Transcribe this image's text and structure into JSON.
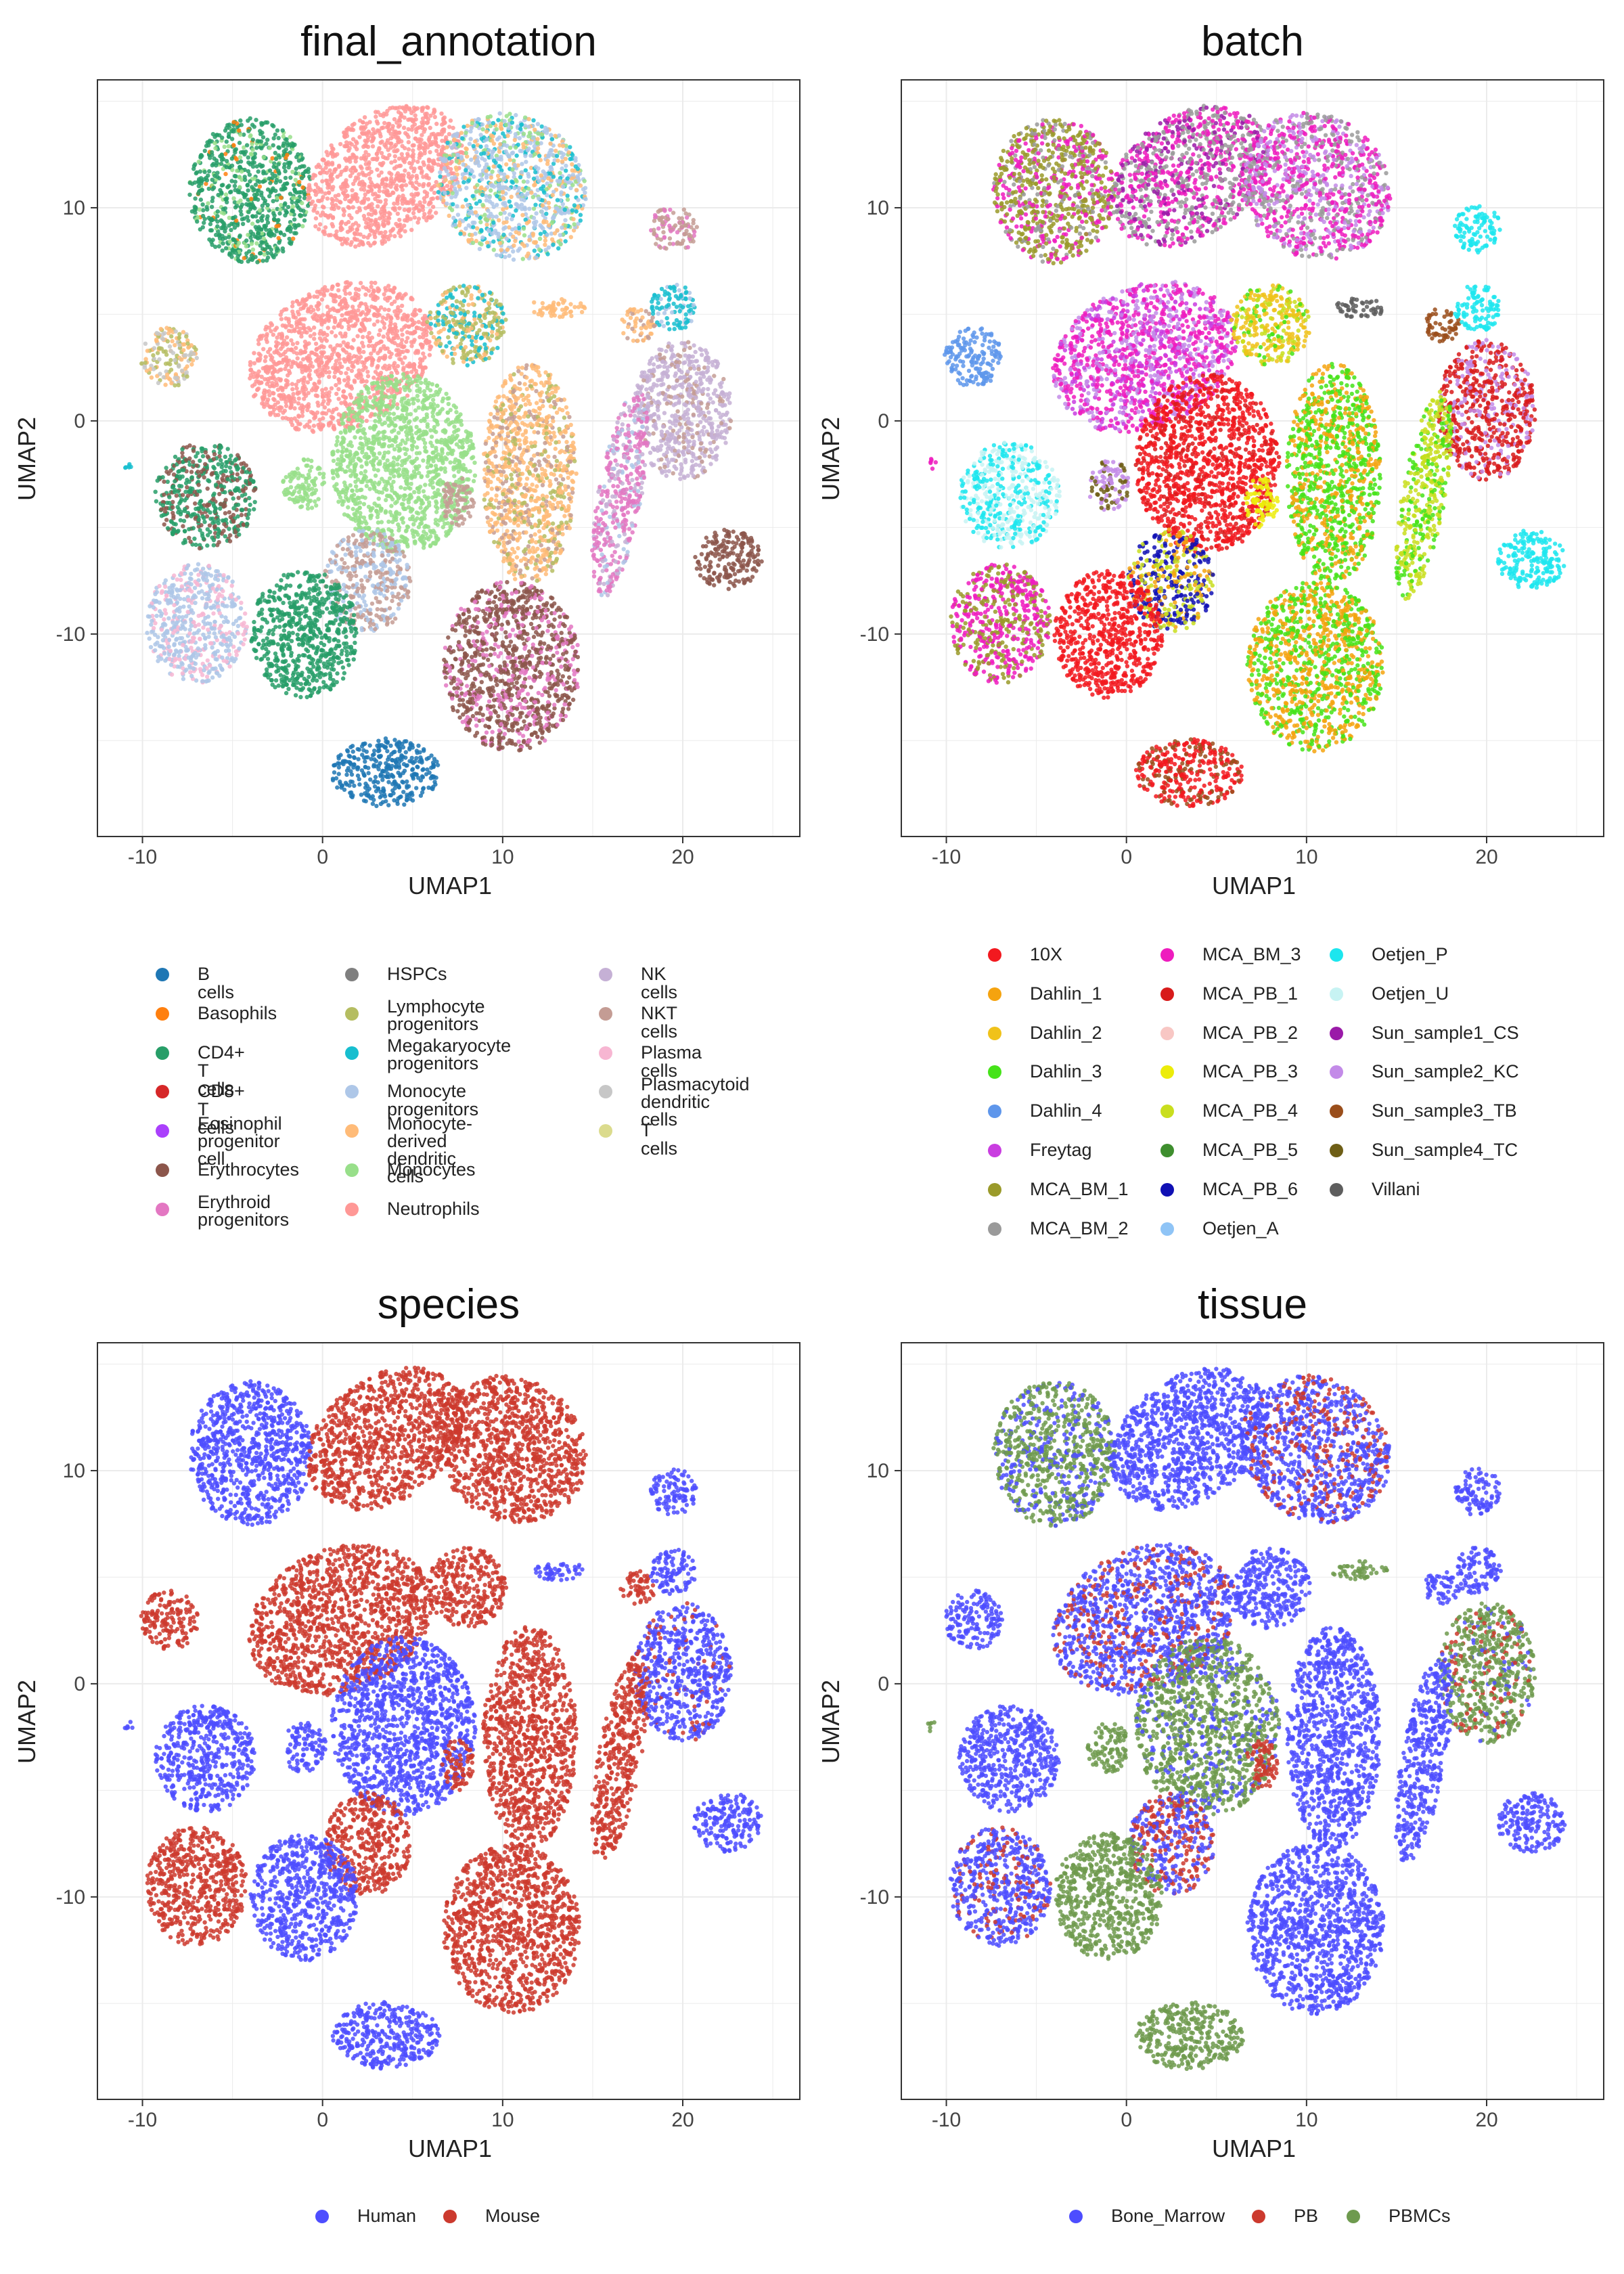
{
  "panels": [
    {
      "title": "final_annotation",
      "xlabel": "UMAP1",
      "ylabel": "UMAP2",
      "legend": [
        {
          "label": "B cells",
          "color": "#1f77b4"
        },
        {
          "label": "Basophils",
          "color": "#ff7f0e"
        },
        {
          "label": "CD4+ T cells",
          "color": "#279e68"
        },
        {
          "label": "CD8+ T cells",
          "color": "#d62728"
        },
        {
          "label": "Eosinophil\nprogenitor cell",
          "color": "#aa40fc"
        },
        {
          "label": "Erythrocytes",
          "color": "#8c564b"
        },
        {
          "label": "Erythroid\nprogenitors",
          "color": "#e377c2"
        },
        {
          "label": "HSPCs",
          "color": "#7f7f7f"
        },
        {
          "label": "Lymphocyte\nprogenitors",
          "color": "#b5bd61"
        },
        {
          "label": "Megakaryocyte\nprogenitors",
          "color": "#17becf"
        },
        {
          "label": "Monocyte progenitors",
          "color": "#aec7e8"
        },
        {
          "label": "Monocyte-derived\ndendritic cells",
          "color": "#ffbb78"
        },
        {
          "label": "Monocytes",
          "color": "#98df8a"
        },
        {
          "label": "Neutrophils",
          "color": "#ff9896"
        },
        {
          "label": "NK cells",
          "color": "#c5b0d5"
        },
        {
          "label": "NKT cells",
          "color": "#c49c94"
        },
        {
          "label": "Plasma cells",
          "color": "#f7b6d2"
        },
        {
          "label": "Plasmacytoid\ndendritic cells",
          "color": "#c7c7c7"
        },
        {
          "label": "T cells",
          "color": "#dbdb8d"
        }
      ]
    },
    {
      "title": "batch",
      "xlabel": "UMAP1",
      "ylabel": "UMAP2",
      "legend": [
        {
          "label": "10X",
          "color": "#f2191f"
        },
        {
          "label": "Dahlin_1",
          "color": "#f5a30f"
        },
        {
          "label": "Dahlin_2",
          "color": "#f0c21a"
        },
        {
          "label": "Dahlin_3",
          "color": "#45e319"
        },
        {
          "label": "Dahlin_4",
          "color": "#5e96eb"
        },
        {
          "label": "Freytag",
          "color": "#c93de0"
        },
        {
          "label": "MCA_BM_1",
          "color": "#9a9a2a"
        },
        {
          "label": "MCA_BM_2",
          "color": "#9a9a9a"
        },
        {
          "label": "MCA_BM_3",
          "color": "#ee1cbe"
        },
        {
          "label": "MCA_PB_1",
          "color": "#d81b1b"
        },
        {
          "label": "MCA_PB_2",
          "color": "#f8c7c4"
        },
        {
          "label": "MCA_PB_3",
          "color": "#ecec0a"
        },
        {
          "label": "MCA_PB_4",
          "color": "#c9de1e"
        },
        {
          "label": "MCA_PB_5",
          "color": "#3e8e2e"
        },
        {
          "label": "MCA_PB_6",
          "color": "#1010b4"
        },
        {
          "label": "Oetjen_A",
          "color": "#8fc4f6"
        },
        {
          "label": "Oetjen_P",
          "color": "#1de6ee"
        },
        {
          "label": "Oetjen_U",
          "color": "#c7f3f3"
        },
        {
          "label": "Sun_sample1_CS",
          "color": "#9a1aa8"
        },
        {
          "label": "Sun_sample2_KC",
          "color": "#c38be8"
        },
        {
          "label": "Sun_sample3_TB",
          "color": "#9a4e1b"
        },
        {
          "label": "Sun_sample4_TC",
          "color": "#6e5e16"
        },
        {
          "label": "Villani",
          "color": "#5e5e5e"
        }
      ]
    },
    {
      "title": "species",
      "xlabel": "UMAP1",
      "ylabel": "UMAP2",
      "legend": [
        {
          "label": "Human",
          "color": "#4d4dff"
        },
        {
          "label": "Mouse",
          "color": "#cc3a2e"
        }
      ]
    },
    {
      "title": "tissue",
      "xlabel": "UMAP1",
      "ylabel": "UMAP2",
      "legend": [
        {
          "label": "Bone_Marrow",
          "color": "#4d4dff"
        },
        {
          "label": "PB",
          "color": "#cc3a2e"
        },
        {
          "label": "PBMCs",
          "color": "#6e9a4e"
        }
      ]
    }
  ],
  "chart_data": [
    {
      "type": "scatter",
      "title": "final_annotation",
      "xlabel": "UMAP1",
      "ylabel": "UMAP2",
      "xlim": [
        -12.5,
        26.5
      ],
      "ylim": [
        -19.5,
        16
      ],
      "xticks": [
        -10,
        0,
        10,
        20
      ],
      "yticks": [
        -10,
        0,
        10
      ],
      "grid": true,
      "legend_position": "bottom",
      "clusters": [
        {
          "x": -4,
          "y": 10.8,
          "category": "CD4+ T cells"
        },
        {
          "x": 3.5,
          "y": 11.5,
          "category": "Neutrophils"
        },
        {
          "x": 10.5,
          "y": 11,
          "category": "Monocyte progenitors"
        },
        {
          "x": 19.5,
          "y": 9,
          "category": "NKT cells"
        },
        {
          "x": -8.5,
          "y": 3,
          "category": "Plasmacytoid dendritic cells"
        },
        {
          "x": 1,
          "y": 3,
          "category": "Neutrophils"
        },
        {
          "x": 8,
          "y": 4.5,
          "category": "Lymphocyte progenitors"
        },
        {
          "x": 12.5,
          "y": 4.8,
          "category": "Monocyte-derived dendritic cells"
        },
        {
          "x": 17.5,
          "y": 4.5,
          "category": "Monocyte-derived dendritic cells"
        },
        {
          "x": 19.5,
          "y": 5.3,
          "category": "Megakaryocyte progenitors"
        },
        {
          "x": 20,
          "y": 0.5,
          "category": "NK cells"
        },
        {
          "x": 4.5,
          "y": -2,
          "category": "Monocytes"
        },
        {
          "x": 11.5,
          "y": -2.5,
          "category": "Monocyte-derived dendritic cells"
        },
        {
          "x": 16.5,
          "y": -3.5,
          "category": "Erythroid progenitors"
        },
        {
          "x": -6.5,
          "y": -3.5,
          "category": "CD4+ T cells"
        },
        {
          "x": -1,
          "y": -3,
          "category": "Monocytes"
        },
        {
          "x": 2.5,
          "y": -7.5,
          "category": "NKT cells"
        },
        {
          "x": 22.5,
          "y": -6.5,
          "category": "Erythrocytes"
        },
        {
          "x": -7,
          "y": -9.5,
          "category": "Monocyte progenitors"
        },
        {
          "x": -1,
          "y": -10,
          "category": "CD4+ T cells"
        },
        {
          "x": 10.5,
          "y": -11.5,
          "category": "Erythrocytes"
        },
        {
          "x": 3.5,
          "y": -16.5,
          "category": "B cells"
        }
      ]
    },
    {
      "type": "scatter",
      "title": "batch",
      "xlabel": "UMAP1",
      "ylabel": "UMAP2",
      "xlim": [
        -12.5,
        26.5
      ],
      "ylim": [
        -19.5,
        16
      ],
      "xticks": [
        -10,
        0,
        10,
        20
      ],
      "yticks": [
        -10,
        0,
        10
      ],
      "grid": true,
      "legend_position": "bottom",
      "clusters": [
        {
          "x": -4,
          "y": 10.8,
          "category": "MCA_BM_1"
        },
        {
          "x": 3.5,
          "y": 11.5,
          "category": "MCA_BM_2"
        },
        {
          "x": 10.5,
          "y": 11,
          "category": "MCA_BM_3"
        },
        {
          "x": 19.5,
          "y": 9,
          "category": "Oetjen_P"
        },
        {
          "x": -8.5,
          "y": 3,
          "category": "Dahlin_4"
        },
        {
          "x": 1,
          "y": 3,
          "category": "MCA_BM_3"
        },
        {
          "x": 8,
          "y": 4.5,
          "category": "Dahlin_2"
        },
        {
          "x": 13,
          "y": 5.3,
          "category": "Villani"
        },
        {
          "x": 20,
          "y": 0.5,
          "category": "MCA_PB_1"
        },
        {
          "x": 4.5,
          "y": -2,
          "category": "10X"
        },
        {
          "x": 11.5,
          "y": -2.5,
          "category": "Dahlin_3"
        },
        {
          "x": 16.5,
          "y": -3.5,
          "category": "MCA_PB_4"
        },
        {
          "x": -6.5,
          "y": -3.5,
          "category": "Oetjen_U"
        },
        {
          "x": 22.5,
          "y": -6.5,
          "category": "Oetjen_P"
        },
        {
          "x": -7,
          "y": -9.5,
          "category": "MCA_BM_3"
        },
        {
          "x": -1,
          "y": -10,
          "category": "10X"
        },
        {
          "x": 10.5,
          "y": -11.5,
          "category": "Dahlin_1"
        },
        {
          "x": 3.5,
          "y": -16.5,
          "category": "10X"
        }
      ]
    },
    {
      "type": "scatter",
      "title": "species",
      "xlabel": "UMAP1",
      "ylabel": "UMAP2",
      "xlim": [
        -12.5,
        26.5
      ],
      "ylim": [
        -19.5,
        16
      ],
      "xticks": [
        -10,
        0,
        10,
        20
      ],
      "yticks": [
        -10,
        0,
        10
      ],
      "grid": true,
      "legend_position": "bottom",
      "series": [
        {
          "name": "Human"
        },
        {
          "name": "Mouse"
        }
      ]
    },
    {
      "type": "scatter",
      "title": "tissue",
      "xlabel": "UMAP1",
      "ylabel": "UMAP2",
      "xlim": [
        -12.5,
        26.5
      ],
      "ylim": [
        -19.5,
        16
      ],
      "xticks": [
        -10,
        0,
        10,
        20
      ],
      "yticks": [
        -10,
        0,
        10
      ],
      "grid": true,
      "legend_position": "bottom",
      "series": [
        {
          "name": "Bone_Marrow"
        },
        {
          "name": "PB"
        },
        {
          "name": "PBMCs"
        }
      ]
    }
  ]
}
